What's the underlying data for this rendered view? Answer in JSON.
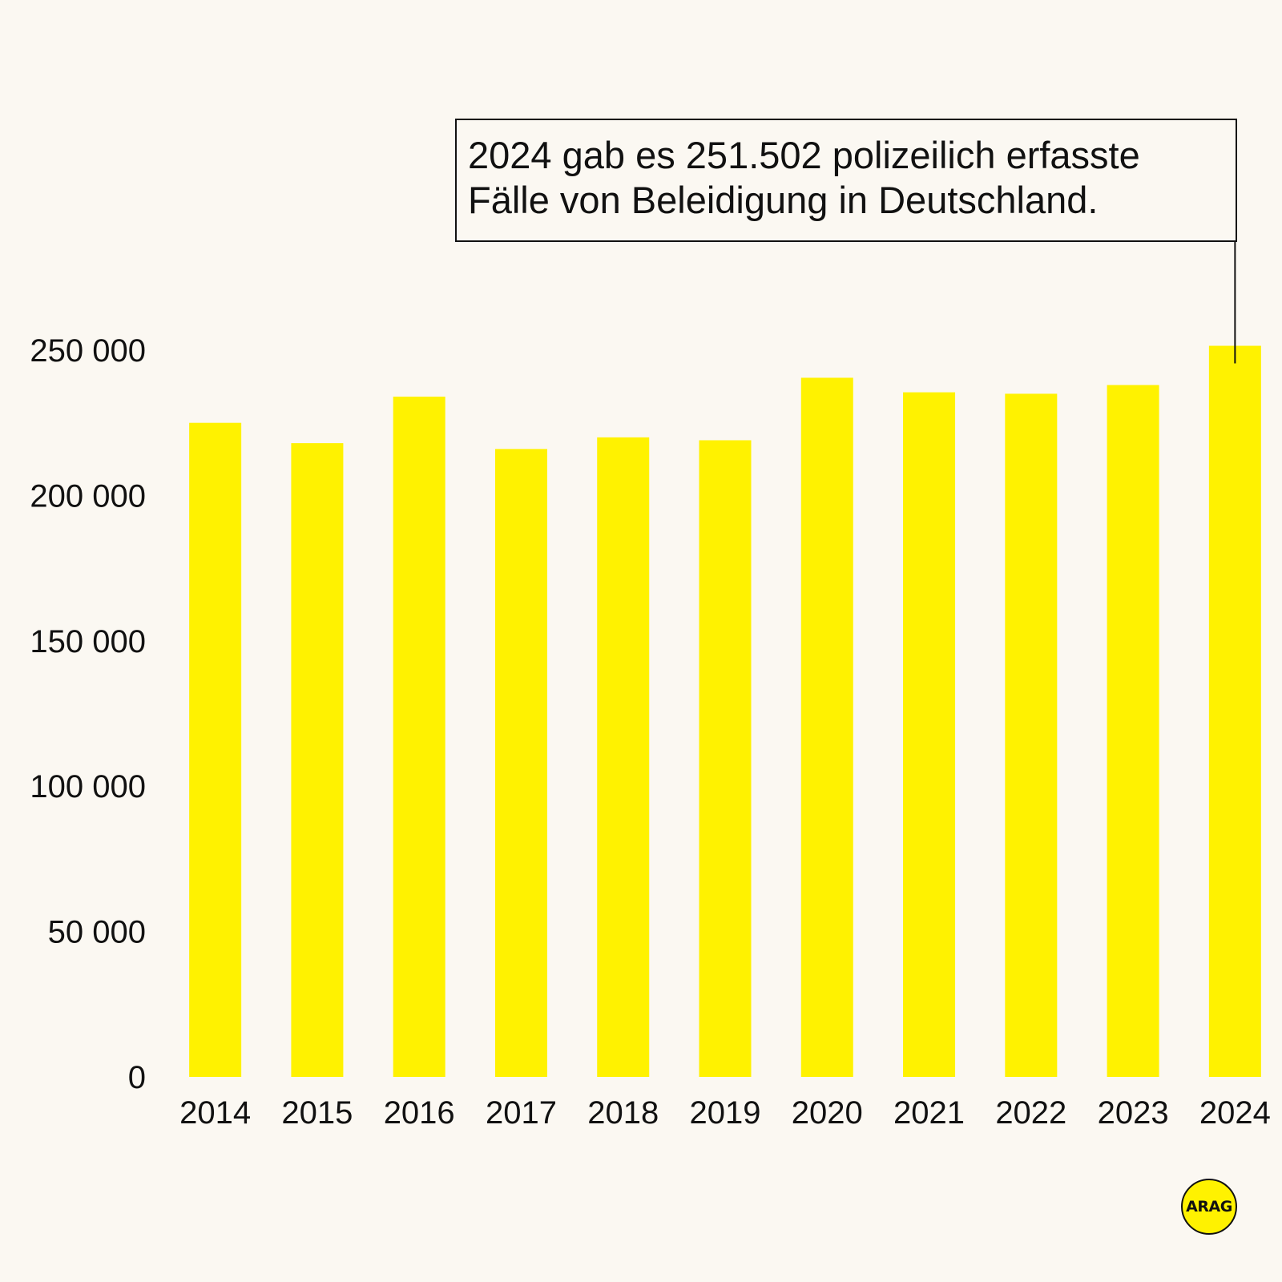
{
  "chart_data": {
    "type": "bar",
    "categories": [
      "2014",
      "2015",
      "2016",
      "2017",
      "2018",
      "2019",
      "2020",
      "2021",
      "2022",
      "2023",
      "2024"
    ],
    "values": [
      225000,
      218000,
      234000,
      216000,
      220000,
      219000,
      240500,
      235500,
      235000,
      238000,
      251502
    ],
    "ylim": [
      0,
      250000
    ],
    "yticks": [
      0,
      50000,
      100000,
      150000,
      200000,
      250000
    ],
    "ytick_labels": [
      "0",
      "50 000",
      "100 000",
      "150 000",
      "200 000",
      "250 000"
    ],
    "xlabel": "",
    "ylabel": "",
    "grid": false,
    "bar_color": "#fff200",
    "annotation": {
      "category": "2024",
      "line1": "2024 gab es 251.502 polizeilich erfasste",
      "line2": "Fälle von Beleidigung in Deutschland."
    }
  },
  "colors": {
    "background": "#fbf8f2",
    "bar": "#fff200",
    "text": "#111111"
  },
  "logo": {
    "text": "ARAG"
  }
}
